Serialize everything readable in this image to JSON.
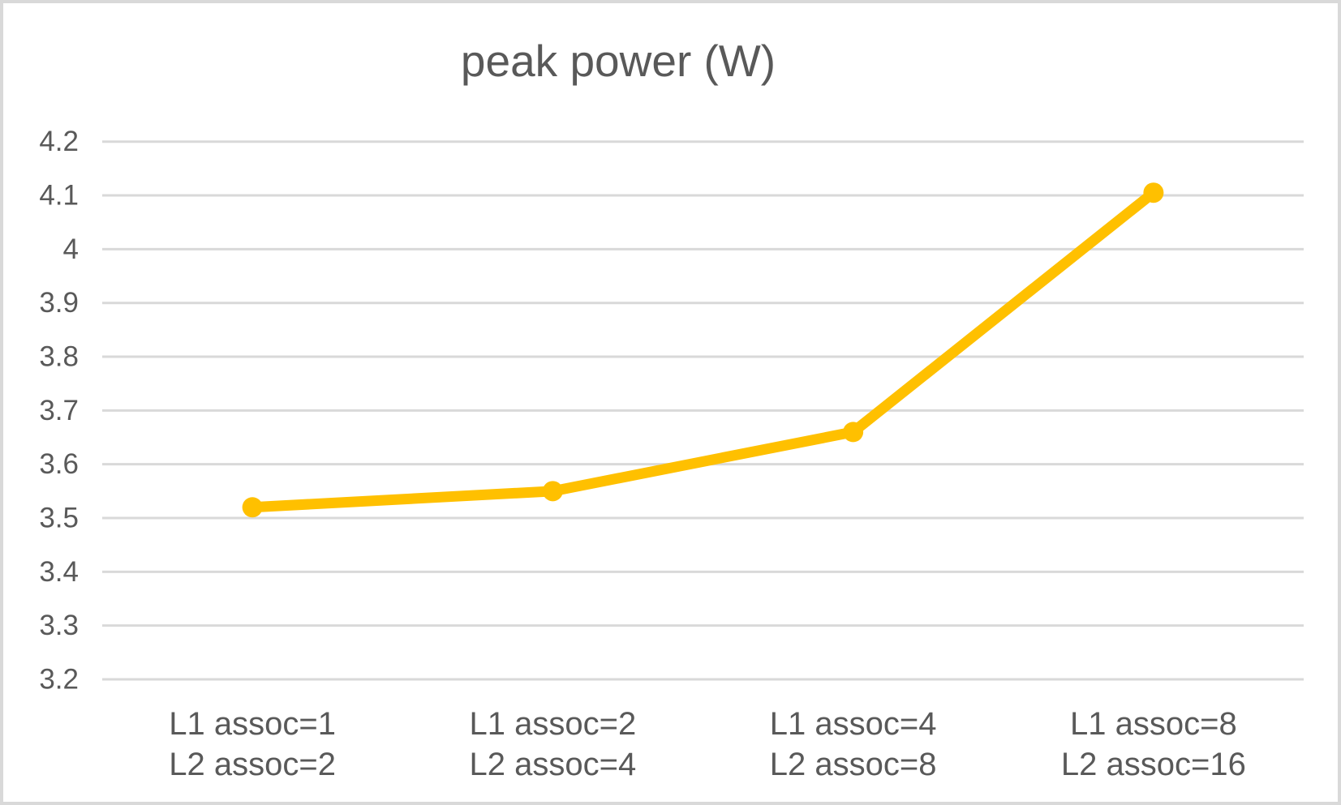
{
  "window": {
    "background": "#ffffff",
    "border_color": "#d9d9d9"
  },
  "chart_data": {
    "type": "line",
    "title": "peak power (W)",
    "xlabel": "",
    "ylabel": "",
    "categories": [
      {
        "line1": "L1 assoc=1",
        "line2": "L2 assoc=2"
      },
      {
        "line1": "L1 assoc=2",
        "line2": "L2 assoc=4"
      },
      {
        "line1": "L1 assoc=4",
        "line2": "L2 assoc=8"
      },
      {
        "line1": "L1 assoc=8",
        "line2": "L2 assoc=16"
      }
    ],
    "series": [
      {
        "name": "peak power (W)",
        "values": [
          3.52,
          3.55,
          3.66,
          4.105
        ],
        "color": "#FFC000"
      }
    ],
    "ylim": [
      3.2,
      4.2
    ],
    "yticks": [
      "3.2",
      "3.3",
      "3.4",
      "3.5",
      "3.6",
      "3.7",
      "3.8",
      "3.9",
      "4",
      "4.1",
      "4.2"
    ],
    "grid": true,
    "legend": "none",
    "marker": "circle",
    "gridline_color": "#d9d9d9",
    "text_color": "#595959"
  }
}
